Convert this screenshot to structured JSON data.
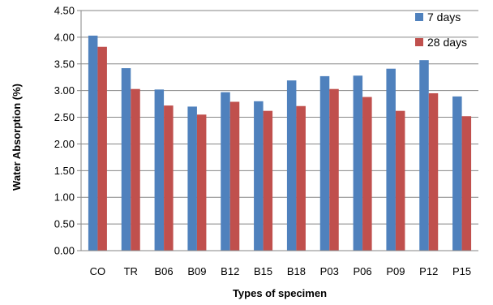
{
  "chart_data": {
    "type": "bar",
    "categories": [
      "CO",
      "TR",
      "B06",
      "B09",
      "B12",
      "B15",
      "B18",
      "P03",
      "P06",
      "P09",
      "P12",
      "P15"
    ],
    "series": [
      {
        "name": "7 days",
        "color": "#4F81BD",
        "values": [
          4.03,
          3.42,
          3.02,
          2.7,
          2.97,
          2.8,
          3.19,
          3.27,
          3.28,
          3.41,
          3.57,
          2.89
        ]
      },
      {
        "name": "28 days",
        "color": "#C0504D",
        "values": [
          3.82,
          3.03,
          2.72,
          2.55,
          2.79,
          2.62,
          2.71,
          3.03,
          2.88,
          2.62,
          2.95,
          2.52
        ]
      }
    ],
    "xlabel": "Types of specimen",
    "ylabel": "Water Absorption (%)",
    "ylim": [
      0,
      4.5
    ],
    "yticks": [
      "0.00",
      "0.50",
      "1.00",
      "1.50",
      "2.00",
      "2.50",
      "3.00",
      "3.50",
      "4.00",
      "4.50"
    ],
    "grid": true,
    "legend_position": "top-right"
  }
}
